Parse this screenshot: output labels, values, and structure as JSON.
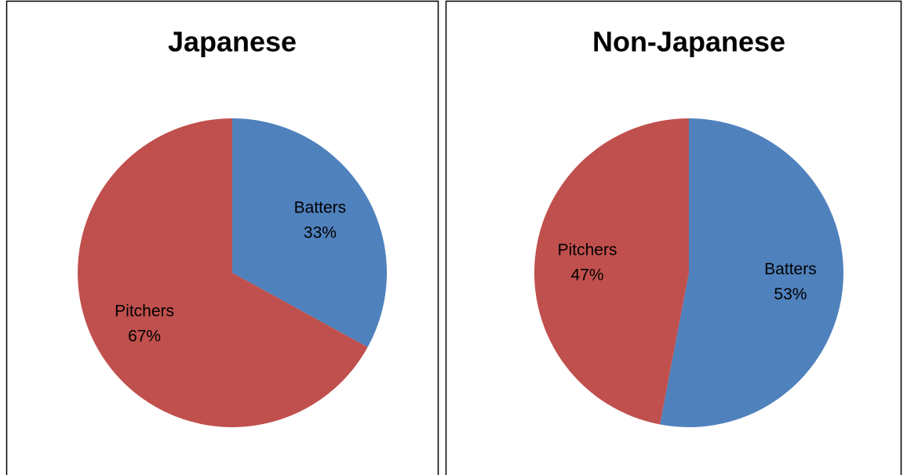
{
  "chart_data": [
    {
      "type": "pie",
      "title": "Japanese",
      "categories": [
        "Batters",
        "Pitchers"
      ],
      "values": [
        33,
        67
      ],
      "value_labels": [
        "33%",
        "67%"
      ],
      "colors": [
        "#4f81bd",
        "#c0504d"
      ]
    },
    {
      "type": "pie",
      "title": "Non-Japanese",
      "categories": [
        "Batters",
        "Pitchers"
      ],
      "values": [
        53,
        47
      ],
      "value_labels": [
        "53%",
        "47%"
      ],
      "colors": [
        "#4f81bd",
        "#c0504d"
      ]
    }
  ]
}
